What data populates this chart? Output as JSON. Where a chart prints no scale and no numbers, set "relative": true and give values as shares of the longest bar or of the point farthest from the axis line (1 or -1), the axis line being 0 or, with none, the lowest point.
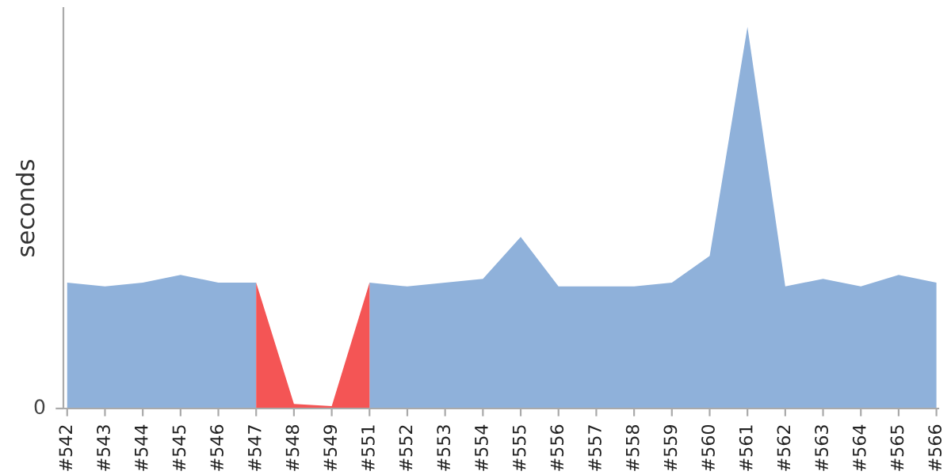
{
  "chart_data": {
    "type": "area",
    "ylabel": "seconds",
    "relative": true,
    "annotations": [
      "0"
    ],
    "categories": [
      "#542",
      "#543",
      "#544",
      "#545",
      "#546",
      "#547",
      "#548",
      "#549",
      "#551",
      "#552",
      "#553",
      "#554",
      "#555",
      "#556",
      "#557",
      "#558",
      "#559",
      "#560",
      "#561",
      "#562",
      "#563",
      "#564",
      "#565",
      "#566"
    ],
    "series": [
      {
        "color": "#8fb1da",
        "values": [
          0.33,
          0.32,
          0.33,
          0.35,
          0.33,
          0.33,
          null,
          null,
          0.33,
          0.32,
          0.33,
          0.34,
          0.45,
          0.32,
          0.32,
          0.32,
          0.33,
          0.4,
          1,
          0.32,
          0.34,
          0.32,
          0.35,
          0.33
        ]
      },
      {
        "color": "#f45555",
        "values": [
          null,
          null,
          null,
          null,
          null,
          0.33,
          0.012,
          0.006,
          0.33,
          null,
          null,
          null,
          null,
          null,
          null,
          null,
          null,
          null,
          null,
          null,
          null,
          null,
          null,
          null
        ]
      }
    ]
  }
}
